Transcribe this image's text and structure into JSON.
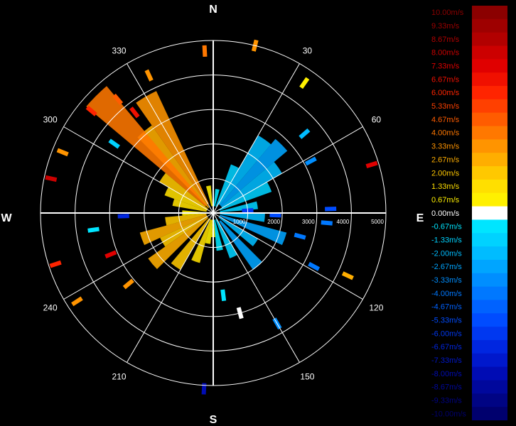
{
  "chart_data": {
    "type": "polar-velocity",
    "compass": {
      "n": "N",
      "e": "E",
      "s": "S",
      "w": "W"
    },
    "azimuth_labels": [
      "30",
      "60",
      "120",
      "150",
      "210",
      "240",
      "300",
      "330"
    ],
    "range_labels": [
      "1000",
      "2000",
      "3000",
      "4000",
      "5000"
    ],
    "range_max": 5000,
    "legend": [
      {
        "label": "10.00m/s",
        "color": "#8b0000"
      },
      {
        "label": "9.33m/s",
        "color": "#9e0000"
      },
      {
        "label": "8.67m/s",
        "color": "#b20000"
      },
      {
        "label": "8.00m/s",
        "color": "#cc0000"
      },
      {
        "label": "7.33m/s",
        "color": "#e00000"
      },
      {
        "label": "6.67m/s",
        "color": "#f01000"
      },
      {
        "label": "6.00m/s",
        "color": "#ff2400"
      },
      {
        "label": "5.33m/s",
        "color": "#ff4000"
      },
      {
        "label": "4.67m/s",
        "color": "#ff5c00"
      },
      {
        "label": "4.00m/s",
        "color": "#ff7800"
      },
      {
        "label": "3.33m/s",
        "color": "#ff9400"
      },
      {
        "label": "2.67m/s",
        "color": "#ffae00"
      },
      {
        "label": "2.00m/s",
        "color": "#ffc800"
      },
      {
        "label": "1.33m/s",
        "color": "#ffdf00"
      },
      {
        "label": "0.67m/s",
        "color": "#fff000"
      },
      {
        "label": "0.00m/s",
        "color": "#ffffff"
      },
      {
        "label": "-0.67m/s",
        "color": "#00e5ff"
      },
      {
        "label": "-1.33m/s",
        "color": "#00d2ff"
      },
      {
        "label": "-2.00m/s",
        "color": "#00bcff"
      },
      {
        "label": "-2.67m/s",
        "color": "#00a5ff"
      },
      {
        "label": "-3.33m/s",
        "color": "#008eff"
      },
      {
        "label": "-4.00m/s",
        "color": "#0078ff"
      },
      {
        "label": "-4.67m/s",
        "color": "#0062ff"
      },
      {
        "label": "-5.33m/s",
        "color": "#004cff"
      },
      {
        "label": "-6.00m/s",
        "color": "#0038f0"
      },
      {
        "label": "-6.67m/s",
        "color": "#0026e0"
      },
      {
        "label": "-7.33m/s",
        "color": "#0018cc"
      },
      {
        "label": "-8.00m/s",
        "color": "#000cb4"
      },
      {
        "label": "-8.67m/s",
        "color": "#00089c"
      },
      {
        "label": "-9.33m/s",
        "color": "#000484"
      },
      {
        "label": "-10.00m/s",
        "color": "#00006e"
      }
    ],
    "sectors": [
      {
        "az": 330,
        "r0": 300,
        "r1": 3900,
        "v": 3.3
      },
      {
        "az": 320,
        "r0": 200,
        "r1": 3100,
        "v": 2.7
      },
      {
        "az": 315,
        "r0": 300,
        "r1": 4800,
        "v": 4.0
      },
      {
        "az": 305,
        "r0": 200,
        "r1": 1800,
        "v": 2.0
      },
      {
        "az": 295,
        "r0": 200,
        "r1": 1500,
        "v": 1.5
      },
      {
        "az": 285,
        "r0": 200,
        "r1": 1200,
        "v": 1.3
      },
      {
        "az": 270,
        "r0": 200,
        "r1": 900,
        "v": 1.0
      },
      {
        "az": 260,
        "r0": 200,
        "r1": 1400,
        "v": 2.0
      },
      {
        "az": 250,
        "r0": 200,
        "r1": 2200,
        "v": 2.5
      },
      {
        "az": 240,
        "r0": 200,
        "r1": 1700,
        "v": 2.0
      },
      {
        "az": 230,
        "r0": 200,
        "r1": 2300,
        "v": 2.7
      },
      {
        "az": 215,
        "r0": 200,
        "r1": 1900,
        "v": 2.0
      },
      {
        "az": 200,
        "r0": 200,
        "r1": 1500,
        "v": 1.3
      },
      {
        "az": 190,
        "r0": 200,
        "r1": 900,
        "v": 0.7
      },
      {
        "az": 350,
        "r0": 200,
        "r1": 800,
        "v": 0.7
      },
      {
        "az": 10,
        "r0": 200,
        "r1": 700,
        "v": -0.7
      },
      {
        "az": 25,
        "r0": 200,
        "r1": 1500,
        "v": -1.3
      },
      {
        "az": 35,
        "r0": 300,
        "r1": 2600,
        "v": -2.0
      },
      {
        "az": 45,
        "r0": 300,
        "r1": 2800,
        "v": -2.7
      },
      {
        "az": 55,
        "r0": 300,
        "r1": 2300,
        "v": -2.0
      },
      {
        "az": 65,
        "r0": 200,
        "r1": 1800,
        "v": -1.5
      },
      {
        "az": 80,
        "r0": 200,
        "r1": 1300,
        "v": -1.3
      },
      {
        "az": 95,
        "r0": 200,
        "r1": 1500,
        "v": -2.0
      },
      {
        "az": 110,
        "r0": 200,
        "r1": 2200,
        "v": -2.7
      },
      {
        "az": 125,
        "r0": 200,
        "r1": 1500,
        "v": -2.0
      },
      {
        "az": 140,
        "r0": 300,
        "r1": 2000,
        "v": -2.7
      },
      {
        "az": 155,
        "r0": 200,
        "r1": 1400,
        "v": -1.3
      },
      {
        "az": 170,
        "r0": 200,
        "r1": 1100,
        "v": -0.7
      },
      {
        "az": 180,
        "r0": 200,
        "r1": 700,
        "v": 0.5
      }
    ],
    "echoes": [
      {
        "az": 335,
        "r": 4400,
        "v": 3.3
      },
      {
        "az": 320,
        "r": 4300,
        "v": 4.7
      },
      {
        "az": 310,
        "r": 4600,
        "v": 6.0
      },
      {
        "az": 305,
        "r": 3500,
        "v": -1.3
      },
      {
        "az": 322,
        "r": 3700,
        "v": 6.7
      },
      {
        "az": 357,
        "r": 4700,
        "v": 4.0
      },
      {
        "az": 14,
        "r": 5000,
        "v": 3.3
      },
      {
        "az": 35,
        "r": 4600,
        "v": 0.7
      },
      {
        "az": 49,
        "r": 3500,
        "v": -2.0
      },
      {
        "az": 62,
        "r": 3200,
        "v": -3.3
      },
      {
        "az": 73,
        "r": 4800,
        "v": 7.3
      },
      {
        "az": 95,
        "r": 3300,
        "v": -4.0
      },
      {
        "az": 92,
        "r": 1800,
        "v": -5.3
      },
      {
        "az": 105,
        "r": 2600,
        "v": -4.0
      },
      {
        "az": 118,
        "r": 3300,
        "v": -4.0
      },
      {
        "az": 150,
        "r": 3700,
        "v": -3.3
      },
      {
        "az": 165,
        "r": 3000,
        "v": 0.0
      },
      {
        "az": 173,
        "r": 2400,
        "v": -0.7
      },
      {
        "az": 183,
        "r": 5100,
        "v": -8.0
      },
      {
        "az": 230,
        "r": 3200,
        "v": 3.3
      },
      {
        "az": 237,
        "r": 4700,
        "v": 3.3
      },
      {
        "az": 262,
        "r": 3500,
        "v": -0.7
      },
      {
        "az": 252,
        "r": 4800,
        "v": 6.0
      },
      {
        "az": 248,
        "r": 3200,
        "v": 7.3
      },
      {
        "az": 282,
        "r": 4800,
        "v": 8.0
      },
      {
        "az": 292,
        "r": 4700,
        "v": 3.3
      },
      {
        "az": 268,
        "r": 2600,
        "v": -6.7
      },
      {
        "az": 86,
        "r": 1000,
        "v": -6.0
      },
      {
        "az": 88,
        "r": 3400,
        "v": -5.3
      },
      {
        "az": 115,
        "r": 4300,
        "v": 2.7
      }
    ]
  }
}
